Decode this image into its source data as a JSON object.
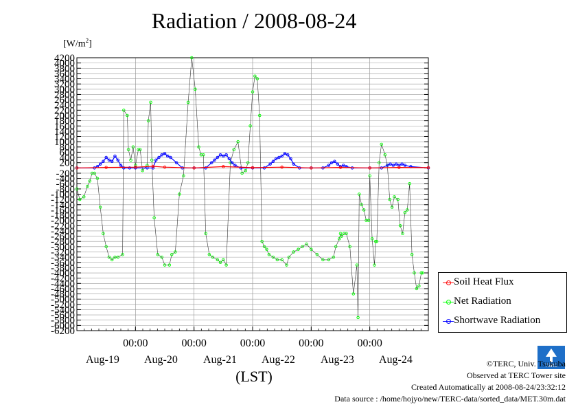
{
  "chart_data": {
    "type": "line",
    "title": "Radiation / 2008-08-24",
    "ylabel": "[W/m2]",
    "ylabel_prefix": "[W/m",
    "ylabel_sup": "2",
    "ylabel_suffix": "]",
    "xlabel": "(LST)",
    "ylim": [
      -6200,
      4200
    ],
    "yticks": [
      4200,
      4000,
      3800,
      3600,
      3400,
      3200,
      3000,
      2800,
      2600,
      2400,
      2200,
      2000,
      1800,
      1600,
      1400,
      1200,
      1000,
      800,
      600,
      400,
      200,
      0,
      -200,
      -400,
      -600,
      -800,
      -1000,
      -1200,
      -1400,
      -1600,
      -1800,
      -2000,
      -2200,
      -2400,
      -2600,
      -2800,
      -3000,
      -3200,
      -3400,
      -3600,
      -3800,
      -4000,
      -4200,
      -4400,
      -4600,
      -4800,
      -5000,
      -5200,
      -5400,
      -5600,
      -5800,
      -6000,
      -6200
    ],
    "ytick_labels": [
      "4200",
      "4000",
      "3800",
      "3600",
      "3400",
      "3200",
      "3000",
      "2800",
      "2600",
      "2400",
      "2200",
      "2000",
      "1800",
      "1600",
      "1400",
      "1200",
      "1000",
      "800",
      "600",
      "400",
      "200",
      "0",
      "-200",
      "-400",
      "-600",
      "-800",
      "-1000",
      "-1200",
      "-1400",
      "-1600",
      "-1800",
      "-2000",
      "-2200",
      "-2400",
      "-2600",
      "-2800",
      "-3000",
      "-3200",
      "-3400",
      "-3600",
      "-3800",
      "-4000",
      "-4200",
      "-4400",
      "-4600",
      "-4800",
      "-5000",
      "-5200",
      "-5400",
      "-5600",
      "-5800",
      "-6000",
      "-6200"
    ],
    "xlim": [
      0,
      6
    ],
    "x_unit": "days from Aug-19 00:00 LST",
    "xtick_labels": [
      "00:00",
      "00:00",
      "00:00",
      "00:00",
      "00:00"
    ],
    "xtick_values": [
      1,
      2,
      3,
      4,
      5
    ],
    "date_labels": [
      "Aug-19",
      "Aug-20",
      "Aug-21",
      "Aug-22",
      "Aug-23",
      "Aug-24"
    ],
    "date_centers": [
      0.5,
      1.5,
      2.5,
      3.5,
      4.5,
      5.5
    ],
    "grid": true,
    "legend_position": "bottom-right, outside plot",
    "series": [
      {
        "name": "Soil Heat Flux",
        "color": "#ff0000",
        "x": [
          0.0,
          0.5,
          1.0,
          1.3,
          1.5,
          2.0,
          2.5,
          3.0,
          3.5,
          4.0,
          4.5,
          5.0,
          5.5,
          6.0
        ],
        "y": [
          0,
          20,
          30,
          60,
          30,
          0,
          50,
          10,
          30,
          0,
          20,
          0,
          20,
          10
        ]
      },
      {
        "name": "Net Radiation",
        "color": "#00ff00",
        "x": [
          0.0,
          0.05,
          0.12,
          0.18,
          0.22,
          0.26,
          0.3,
          0.35,
          0.4,
          0.45,
          0.5,
          0.55,
          0.6,
          0.65,
          0.7,
          0.78,
          0.8,
          0.86,
          0.88,
          0.92,
          0.96,
          1.0,
          1.05,
          1.08,
          1.12,
          1.2,
          1.22,
          1.26,
          1.28,
          1.32,
          1.38,
          1.45,
          1.5,
          1.58,
          1.62,
          1.68,
          1.75,
          1.82,
          1.9,
          1.96,
          2.02,
          2.08,
          2.12,
          2.16,
          2.2,
          2.26,
          2.32,
          2.4,
          2.45,
          2.5,
          2.55,
          2.62,
          2.68,
          2.75,
          2.82,
          2.88,
          2.92,
          2.96,
          3.0,
          3.04,
          3.08,
          3.12,
          3.16,
          3.2,
          3.24,
          3.28,
          3.35,
          3.42,
          3.5,
          3.58,
          3.62,
          3.7,
          3.78,
          3.85,
          3.92,
          4.0,
          4.1,
          4.2,
          4.3,
          4.38,
          4.42,
          4.48,
          4.5,
          4.52,
          4.56,
          4.6,
          4.66,
          4.72,
          4.78,
          4.8,
          4.82,
          4.86,
          4.9,
          4.94,
          4.98,
          5.0,
          5.04,
          5.08,
          5.1,
          5.12,
          5.16,
          5.2,
          5.26,
          5.3,
          5.34,
          5.38,
          5.42,
          5.48,
          5.52,
          5.56,
          5.6,
          5.64,
          5.68,
          5.72,
          5.76,
          5.8,
          5.84,
          5.88,
          5.9
        ],
        "y": [
          -800,
          -1200,
          -1100,
          -700,
          -500,
          -200,
          -200,
          -400,
          -1500,
          -2500,
          -3000,
          -3400,
          -3500,
          -3400,
          -3400,
          -3300,
          2200,
          2000,
          700,
          300,
          800,
          100,
          700,
          700,
          -100,
          100,
          1800,
          2500,
          300,
          -1900,
          -3300,
          -3400,
          -3700,
          -3700,
          -3300,
          -3200,
          -1000,
          -300,
          2500,
          4200,
          3000,
          800,
          500,
          500,
          -2500,
          -3300,
          -3400,
          -3500,
          -3600,
          -3500,
          -3700,
          200,
          700,
          1000,
          -200,
          -100,
          200,
          1600,
          2900,
          3500,
          3400,
          2000,
          -2800,
          -3000,
          -3100,
          -3300,
          -3400,
          -3500,
          -3500,
          -3700,
          -3400,
          -3200,
          -3100,
          -3000,
          -2900,
          -3100,
          -3300,
          -3500,
          -3500,
          -3400,
          -3000,
          -2700,
          -2500,
          -2600,
          -2500,
          -2500,
          -3000,
          -4800,
          -3700,
          -5700,
          -1000,
          -1400,
          -1600,
          -2000,
          -2000,
          -300,
          -2700,
          -3700,
          -2800,
          -2800,
          200,
          900,
          500,
          100,
          -1200,
          -1500,
          -1100,
          -1200,
          -2200,
          -2500,
          -1700,
          -1600,
          -600,
          -3300,
          -4000,
          -4600,
          -4500,
          -4000,
          -4000
        ]
      },
      {
        "name": "Shortwave Radiation",
        "color": "#0000ff",
        "x": [
          0.0,
          0.3,
          0.35,
          0.4,
          0.45,
          0.5,
          0.55,
          0.6,
          0.65,
          0.7,
          0.75,
          0.8,
          0.9,
          1.0,
          1.2,
          1.3,
          1.35,
          1.4,
          1.45,
          1.5,
          1.55,
          1.6,
          1.7,
          1.8,
          2.0,
          2.2,
          2.3,
          2.35,
          2.4,
          2.45,
          2.5,
          2.55,
          2.6,
          2.65,
          2.7,
          2.8,
          3.0,
          3.2,
          3.3,
          3.35,
          3.4,
          3.45,
          3.5,
          3.55,
          3.6,
          3.65,
          3.7,
          3.8,
          4.0,
          4.2,
          4.3,
          4.35,
          4.4,
          4.45,
          4.5,
          4.55,
          4.6,
          4.7,
          5.0,
          5.2,
          5.3,
          5.35,
          5.4,
          5.45,
          5.5,
          5.55,
          5.6,
          5.7,
          6.0
        ],
        "y": [
          0,
          0,
          50,
          150,
          250,
          400,
          300,
          250,
          450,
          300,
          100,
          0,
          0,
          0,
          0,
          0,
          300,
          400,
          500,
          550,
          450,
          400,
          200,
          0,
          0,
          0,
          200,
          300,
          400,
          500,
          450,
          500,
          350,
          200,
          100,
          0,
          0,
          0,
          150,
          250,
          350,
          400,
          450,
          550,
          500,
          350,
          150,
          0,
          0,
          0,
          100,
          200,
          250,
          150,
          50,
          100,
          50,
          0,
          0,
          0,
          100,
          150,
          100,
          150,
          100,
          150,
          100,
          50,
          0
        ]
      }
    ]
  },
  "credits": {
    "copyright": "©TERC, Univ. Tsukuba",
    "observed": "Observed at TERC Tower site",
    "created": "Created Automatically at 2008-08-24/23:32:12",
    "source": "Data source : /home/hojyo/new/TERC-data/sorted_data/MET.30m.dat"
  },
  "logo_text": "TERC"
}
